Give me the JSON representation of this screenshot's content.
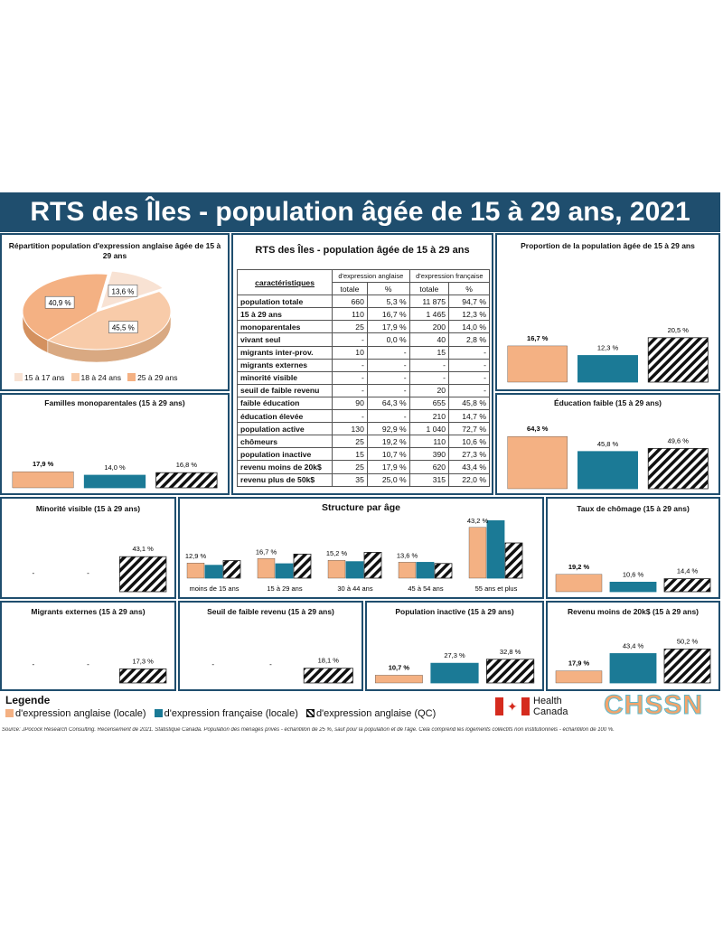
{
  "title": "RTS des Îles - population âgée de 15 à 29 ans, 2021",
  "colors": {
    "anglaise_locale": "#f4b183",
    "francaise_locale": "#1b7a96",
    "anglaise_qc": "hatch",
    "header": "#1f4e6e"
  },
  "pie": {
    "title": "Répartition population d'expression anglaise âgée de 15 à 29 ans",
    "chart_data": {
      "type": "pie",
      "slices": [
        {
          "label": "15 à 17 ans",
          "value": 13.6,
          "display": "13,6 %",
          "color": "#f8e2d3"
        },
        {
          "label": "18 à 24 ans",
          "value": 45.5,
          "display": "45,5 %",
          "color": "#f8cba9"
        },
        {
          "label": "25 à 29 ans",
          "value": 40.9,
          "display": "40,9 %",
          "color": "#f4b183"
        }
      ]
    }
  },
  "table": {
    "title": "RTS des Îles - population âgée de 15 à 29 ans",
    "head_carac": "caractéristiques",
    "head_ang": "d'expression anglaise",
    "head_fr": "d'expression française",
    "sub_total": "totale",
    "sub_pct": "%",
    "rows": [
      [
        "population totale",
        "660",
        "5,3 %",
        "11 875",
        "94,7 %"
      ],
      [
        "15 à 29 ans",
        "110",
        "16,7 %",
        "1 465",
        "12,3 %"
      ],
      [
        "monoparentales",
        "25",
        "17,9 %",
        "200",
        "14,0 %"
      ],
      [
        "vivant seul",
        "-",
        "0,0 %",
        "40",
        "2,8 %"
      ],
      [
        "migrants inter-prov.",
        "10",
        "-",
        "15",
        "-"
      ],
      [
        "migrants externes",
        "-",
        "-",
        "-",
        "-"
      ],
      [
        "minorité visible",
        "-",
        "-",
        "-",
        "-"
      ],
      [
        "seuil de faible revenu",
        "-",
        "-",
        "20",
        "-"
      ],
      [
        "faible éducation",
        "90",
        "64,3 %",
        "655",
        "45,8 %"
      ],
      [
        "éducation élevée",
        "-",
        "-",
        "210",
        "14,7 %"
      ],
      [
        "population active",
        "130",
        "92,9 %",
        "1 040",
        "72,7 %"
      ],
      [
        "chômeurs",
        "25",
        "19,2 %",
        "110",
        "10,6 %"
      ],
      [
        "population inactive",
        "15",
        "10,7 %",
        "390",
        "27,3 %"
      ],
      [
        "revenu moins de 20k$",
        "25",
        "17,9 %",
        "620",
        "43,4 %"
      ],
      [
        "revenu plus de 50k$",
        "35",
        "25,0 %",
        "315",
        "22,0 %"
      ]
    ]
  },
  "charts": {
    "proportion": {
      "title": "Proportion de la population âgée de 15 à 29 ans",
      "chart_data": {
        "type": "bar",
        "series": [
          {
            "name": "d'expression anglaise (locale)",
            "value": 16.7
          },
          {
            "name": "d'expression française (locale)",
            "value": 12.3
          },
          {
            "name": "d'expression anglaise (QC)",
            "value": 20.5
          }
        ],
        "labels": [
          "16,7 %",
          "12,3 %",
          "20,5 %"
        ]
      }
    },
    "familles": {
      "title": "Familles monoparentales  (15 à 29 ans)",
      "chart_data": {
        "type": "bar",
        "series": [
          {
            "name": "d'expression anglaise (locale)",
            "value": 17.9
          },
          {
            "name": "d'expression française (locale)",
            "value": 14.0
          },
          {
            "name": "d'expression anglaise (QC)",
            "value": 16.8
          }
        ],
        "labels": [
          "17,9 %",
          "14,0 %",
          "16,8 %"
        ]
      }
    },
    "education": {
      "title": "Éducation faible  (15 à 29 ans)",
      "chart_data": {
        "type": "bar",
        "series": [
          {
            "name": "d'expression anglaise (locale)",
            "value": 64.3
          },
          {
            "name": "d'expression française (locale)",
            "value": 45.8
          },
          {
            "name": "d'expression anglaise (QC)",
            "value": 49.6
          }
        ],
        "labels": [
          "64,3 %",
          "45,8 %",
          "49,6 %"
        ]
      }
    },
    "minorite": {
      "title": "Minorité visible  (15 à 29 ans)",
      "chart_data": {
        "type": "bar",
        "series": [
          {
            "name": "d'expression anglaise (locale)",
            "value": null
          },
          {
            "name": "d'expression française (locale)",
            "value": null
          },
          {
            "name": "d'expression anglaise (QC)",
            "value": 43.1
          }
        ],
        "labels": [
          "-",
          "-",
          "43,1 %"
        ]
      }
    },
    "chomage": {
      "title": "Taux de chômage  (15 à 29 ans)",
      "chart_data": {
        "type": "bar",
        "series": [
          {
            "name": "d'expression anglaise (locale)",
            "value": 19.2
          },
          {
            "name": "d'expression française (locale)",
            "value": 10.6
          },
          {
            "name": "d'expression anglaise (QC)",
            "value": 14.4
          }
        ],
        "labels": [
          "19,2 %",
          "10,6 %",
          "14,4 %"
        ]
      }
    },
    "migrants": {
      "title": "Migrants externes  (15 à 29 ans)",
      "chart_data": {
        "type": "bar",
        "series": [
          {
            "name": "d'expression anglaise (locale)",
            "value": null
          },
          {
            "name": "d'expression française (locale)",
            "value": null
          },
          {
            "name": "d'expression anglaise (QC)",
            "value": 17.3
          }
        ],
        "labels": [
          "-",
          "-",
          "17,3 %"
        ]
      }
    },
    "seuil": {
      "title": "Seuil de faible revenu  (15 à 29 ans)",
      "chart_data": {
        "type": "bar",
        "series": [
          {
            "name": "d'expression anglaise (locale)",
            "value": null
          },
          {
            "name": "d'expression française (locale)",
            "value": null
          },
          {
            "name": "d'expression anglaise (QC)",
            "value": 18.1
          }
        ],
        "labels": [
          "-",
          "-",
          "18,1 %"
        ]
      }
    },
    "inactive": {
      "title": "Population inactive  (15 à 29 ans)",
      "chart_data": {
        "type": "bar",
        "series": [
          {
            "name": "d'expression anglaise (locale)",
            "value": 10.7
          },
          {
            "name": "d'expression française (locale)",
            "value": 27.3
          },
          {
            "name": "d'expression anglaise (QC)",
            "value": 32.8
          }
        ],
        "labels": [
          "10,7 %",
          "27,3 %",
          "32,8 %"
        ]
      }
    },
    "revenu": {
      "title": "Revenu moins de 20k$  (15 à 29 ans)",
      "chart_data": {
        "type": "bar",
        "series": [
          {
            "name": "d'expression anglaise (locale)",
            "value": 17.9
          },
          {
            "name": "d'expression française (locale)",
            "value": 43.4
          },
          {
            "name": "d'expression anglaise (QC)",
            "value": 50.2
          }
        ],
        "labels": [
          "17,9 %",
          "43,4 %",
          "50,2 %"
        ]
      }
    }
  },
  "structure": {
    "title": "Structure par âge",
    "chart_data": {
      "type": "bar",
      "categories": [
        "moins de 15 ans",
        "15 à 29 ans",
        "30 à 44 ans",
        "45 à 54 ans",
        "55 ans et plus"
      ],
      "series": [
        {
          "name": "d'expression anglaise (locale)",
          "values": [
            12.9,
            16.7,
            15.2,
            13.6,
            43.2
          ]
        },
        {
          "name": "d'expression française (locale)",
          "values": [
            11.0,
            12.3,
            14.1,
            13.5,
            49.0
          ]
        },
        {
          "name": "d'expression anglaise (QC)",
          "values": [
            15.0,
            20.5,
            22.0,
            12.5,
            30.0
          ]
        }
      ],
      "labels": [
        "12,9 %",
        "16,7 %",
        "15,2 %",
        "13,6 %",
        "43,2 %"
      ]
    }
  },
  "legend": {
    "title": "Legende",
    "items": [
      "d'expression anglaise (locale)",
      "d'expression française (locale)",
      "d'expression anglaise (QC)"
    ]
  },
  "logos": {
    "health1": "Health",
    "health2": "Canada",
    "chssn": "CHSSN"
  },
  "source": "Source: JPocock Research Consulting. Recensement de 2021. Statistique Canada. Population des ménages privés - échantillon de 25 %, sauf pour la population et de l'âge. Cela comprend les logements collectifs non institutionnels - échantillon de 100 %."
}
